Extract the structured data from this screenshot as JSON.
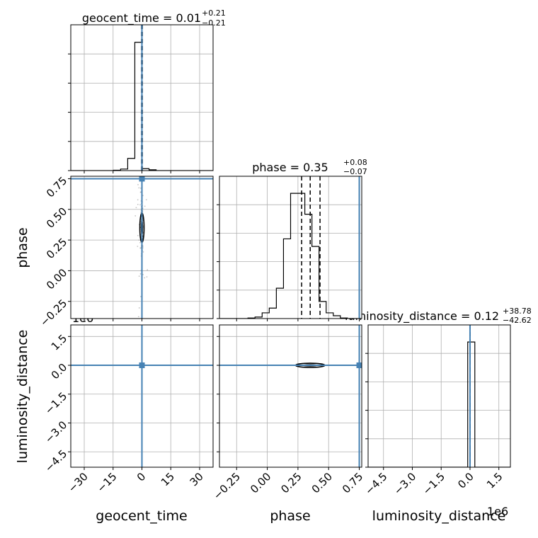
{
  "chart_data": {
    "type": "corner",
    "parameters": [
      "geocent_time",
      "phase",
      "luminosity_distance"
    ],
    "axis_labels": {
      "geocent_time": "geocent_time",
      "phase": "phase",
      "luminosity_distance": "luminosity_distance",
      "distance_offset": "1e6"
    },
    "ticks": {
      "geocent_time": [
        "−30",
        "−15",
        "0",
        "15",
        "30"
      ],
      "phase": [
        "−0.25",
        "0.00",
        "0.25",
        "0.50",
        "0.75"
      ],
      "luminosity_distance": [
        "−4.5",
        "−3.0",
        "−1.5",
        "0.0",
        "1.5"
      ]
    },
    "ranges": {
      "geocent_time": [
        -37,
        37
      ],
      "phase": [
        -0.39,
        0.77
      ],
      "luminosity_distance": [
        -5.3,
        2.1
      ]
    },
    "titles": {
      "geocent_time": {
        "prefix": "geocent_time = ",
        "median": "0.01",
        "plus": "+0.21",
        "minus": "−0.21"
      },
      "phase": {
        "prefix": "phase = ",
        "median": "0.35",
        "plus": "+0.08",
        "minus": "−0.07"
      },
      "luminosity_distance": {
        "prefix": "luminosity_distance = ",
        "median": "0.12",
        "plus": "+38.78",
        "minus": "−42.62"
      }
    },
    "truths": {
      "geocent_time": 0.0,
      "phase": 0.75,
      "luminosity_distance": 0.0
    },
    "quantiles": {
      "geocent_time": [
        -0.2,
        0.01,
        0.22
      ],
      "phase": [
        0.28,
        0.35,
        0.43
      ],
      "luminosity_distance": [
        -4e-05,
        1e-07,
        4e-05
      ]
    },
    "histograms": {
      "geocent_time": {
        "edges": [
          -37,
          -33.3,
          -29.6,
          -25.9,
          -22.2,
          -18.5,
          -14.8,
          -11.1,
          -7.4,
          -3.7,
          0,
          3.7,
          7.4,
          11.1,
          14.8,
          18.5,
          22.2,
          25.9,
          29.6,
          33.3,
          37
        ],
        "counts": [
          0,
          0,
          0,
          0,
          0,
          0,
          0.3,
          1.2,
          9.5,
          100,
          1.5,
          0.6,
          0,
          0,
          0,
          0,
          0,
          0,
          0,
          0
        ]
      },
      "phase": {
        "edges": [
          -0.39,
          -0.332,
          -0.274,
          -0.216,
          -0.158,
          -0.1,
          -0.042,
          0.016,
          0.074,
          0.132,
          0.19,
          0.248,
          0.306,
          0.364,
          0.422,
          0.48,
          0.538,
          0.596,
          0.654,
          0.712,
          0.77
        ],
        "counts": [
          0,
          0,
          0,
          0,
          0.3,
          0.8,
          3,
          5.5,
          16,
          42,
          66,
          66,
          55,
          38,
          9,
          3,
          1.5,
          0.3,
          0,
          0
        ]
      },
      "luminosity_distance": {
        "edges": [
          -5.3,
          -4.93,
          -4.56,
          -4.19,
          -3.82,
          -3.45,
          -3.08,
          -2.71,
          -2.34,
          -1.97,
          -1.6,
          -1.23,
          -0.86,
          -0.49,
          -0.12,
          0.25,
          0.62,
          0.99,
          1.36,
          1.73,
          2.1
        ],
        "counts": [
          0,
          0,
          0,
          0,
          0,
          0,
          0,
          0,
          0,
          0,
          0,
          0,
          0,
          0,
          100,
          0,
          0,
          0,
          0,
          0
        ]
      }
    },
    "grid": true,
    "truth_color": "#4682b4",
    "line_color": "#000000",
    "grid_color": "#b0b0b0",
    "point_color": "#555555"
  }
}
